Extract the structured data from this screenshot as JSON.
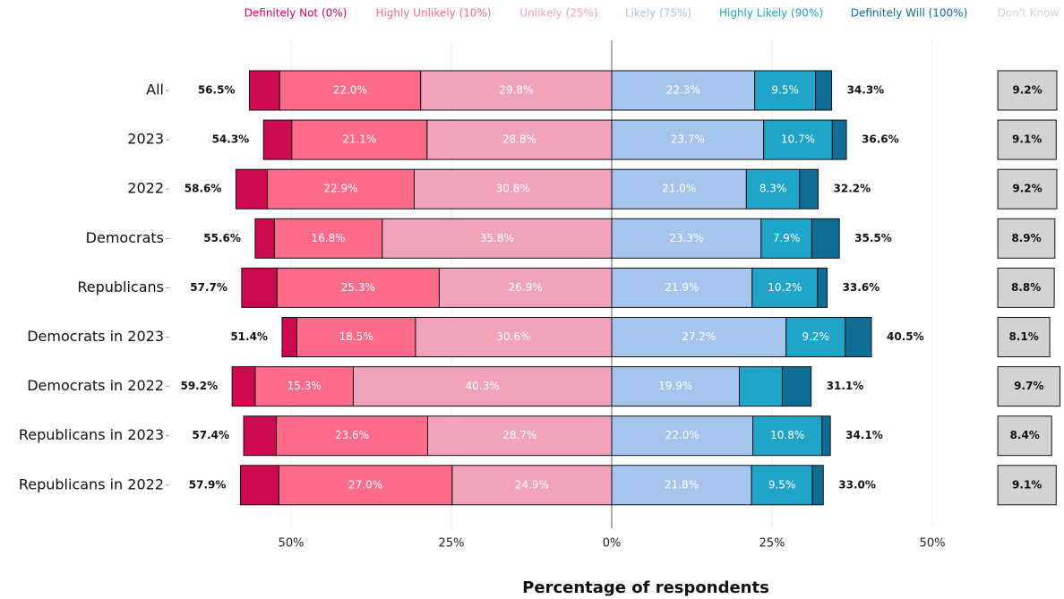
{
  "chart_data": {
    "type": "diverging_bar",
    "xlabel": "Percentage of respondents",
    "categories": [
      "All",
      "2023",
      "2022",
      "Democrats",
      "Republicans",
      "Democrats in 2023",
      "Democrats in 2022",
      "Republicans in 2023",
      "Republicans in 2022"
    ],
    "series": [
      {
        "name": "Definitely Not (0%)",
        "color": "#cc0a4f",
        "side": "left",
        "values": [
          4.7,
          4.4,
          4.9,
          3.0,
          5.5,
          2.3,
          3.6,
          5.1,
          6.0
        ]
      },
      {
        "name": "Highly Unlikely (10%)",
        "color": "#ff6b8b",
        "side": "left",
        "values": [
          22.0,
          21.1,
          22.9,
          16.8,
          25.3,
          18.5,
          15.3,
          23.6,
          27.0
        ],
        "value_labels": [
          "22.0%",
          "21.1%",
          "22.9%",
          "16.8%",
          "25.3%",
          "18.5%",
          "15.3%",
          "23.6%",
          "27.0%"
        ]
      },
      {
        "name": "Unlikely (25%)",
        "color": "#f0a3bb",
        "side": "left",
        "values": [
          29.8,
          28.8,
          30.8,
          35.8,
          26.9,
          30.6,
          40.3,
          28.7,
          24.9
        ],
        "value_labels": [
          "29.8%",
          "28.8%",
          "30.8%",
          "35.8%",
          "26.9%",
          "30.6%",
          "40.3%",
          "28.7%",
          "24.9%"
        ]
      },
      {
        "name": "Likely (75%)",
        "color": "#a5c5ec",
        "side": "right",
        "values": [
          22.3,
          23.7,
          21.0,
          23.3,
          21.9,
          27.2,
          19.9,
          22.0,
          21.8
        ],
        "value_labels": [
          "22.3%",
          "23.7%",
          "21.0%",
          "23.3%",
          "21.9%",
          "27.2%",
          "19.9%",
          "22.0%",
          "21.8%"
        ]
      },
      {
        "name": "Highly Likely (90%)",
        "color": "#20a4c8",
        "side": "right",
        "values": [
          9.5,
          10.7,
          8.3,
          7.9,
          10.2,
          9.2,
          6.7,
          10.8,
          9.5
        ],
        "value_labels": [
          "9.5%",
          "10.7%",
          "8.3%",
          "7.9%",
          "10.2%",
          "9.2%",
          null,
          "10.8%",
          "9.5%"
        ]
      },
      {
        "name": "Definitely Will (100%)",
        "color": "#0f6c94",
        "side": "right",
        "values": [
          2.5,
          2.2,
          2.9,
          4.3,
          1.5,
          4.1,
          4.5,
          1.3,
          1.7
        ]
      },
      {
        "name": "Don't Know",
        "color": "#d3d3d3",
        "side": "separate",
        "values": [
          9.2,
          9.1,
          9.2,
          8.9,
          8.8,
          8.1,
          9.7,
          8.4,
          9.1
        ],
        "value_labels": [
          "9.2%",
          "9.1%",
          "9.2%",
          "8.9%",
          "8.8%",
          "8.1%",
          "9.7%",
          "8.4%",
          "9.1%"
        ]
      }
    ],
    "left_totals": {
      "values": [
        56.5,
        54.3,
        58.6,
        55.6,
        57.7,
        51.4,
        59.2,
        57.4,
        57.9
      ],
      "value_labels": [
        "56.5%",
        "54.3%",
        "58.6%",
        "55.6%",
        "57.7%",
        "51.4%",
        "59.2%",
        "57.4%",
        "57.9%"
      ]
    },
    "right_totals": {
      "values": [
        34.3,
        36.6,
        32.2,
        35.5,
        33.6,
        40.5,
        31.1,
        34.1,
        33.0
      ],
      "value_labels": [
        "34.3%",
        "36.6%",
        "32.2%",
        "35.5%",
        "33.6%",
        "40.5%",
        "31.1%",
        "34.1%",
        "33.0%"
      ]
    },
    "xlim": [
      -60,
      60
    ],
    "xticks": [
      {
        "value": -50,
        "label": "50%"
      },
      {
        "value": -25,
        "label": "25%"
      },
      {
        "value": 0,
        "label": "0%"
      },
      {
        "value": 25,
        "label": "25%"
      },
      {
        "value": 50,
        "label": "50%"
      }
    ],
    "grid": true
  }
}
